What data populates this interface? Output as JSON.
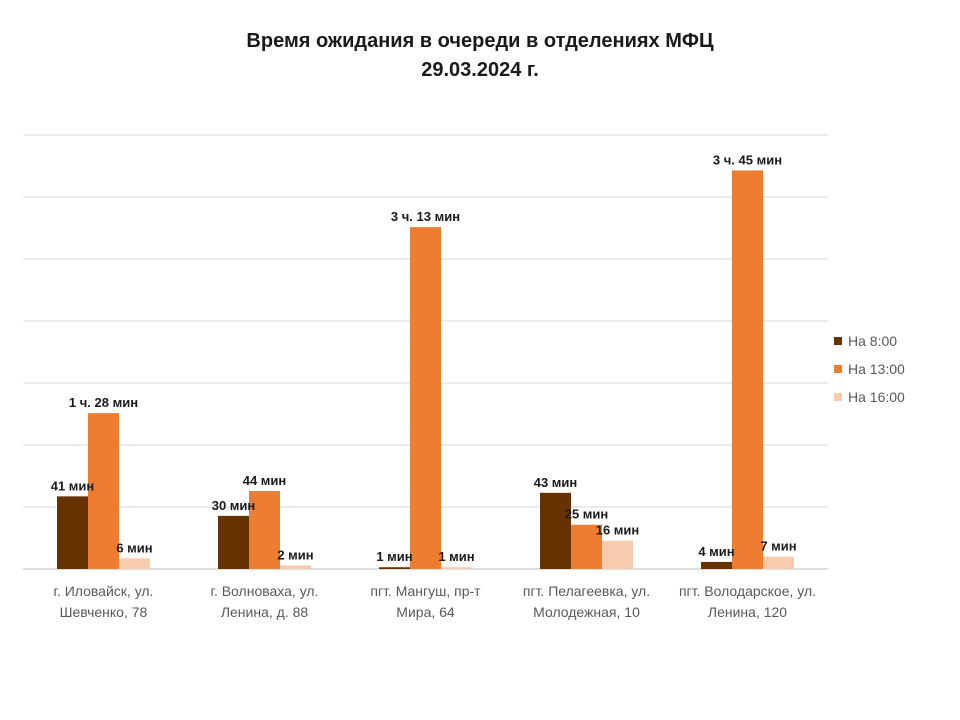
{
  "chart_data": {
    "type": "bar",
    "title": [
      "Время ожидания в очереди в отделениях МФЦ",
      "29.03.2024   г."
    ],
    "xlabel": "",
    "ylabel": "",
    "ylim": [
      0,
      245
    ],
    "grid": true,
    "legend_position": "right",
    "categories": [
      [
        "г. Иловайск, ул.",
        "Шевченко, 78"
      ],
      [
        "г. Волноваха, ул.",
        "Ленина, д. 88"
      ],
      [
        "пгт. Мангуш, пр-т",
        "Мира, 64"
      ],
      [
        "пгт. Пелагеевка, ул.",
        "Молодежная, 10"
      ],
      [
        "пгт. Володарское, ул.",
        "Ленина, 120"
      ]
    ],
    "series": [
      {
        "name": "На 8:00",
        "color": "#663300",
        "values": [
          41,
          30,
          1,
          43,
          4
        ],
        "labels": [
          "41 мин",
          "30 мин",
          "1 мин",
          "43 мин",
          "4 мин"
        ]
      },
      {
        "name": "На 13:00",
        "color": "#ED7D31",
        "values": [
          88,
          44,
          193,
          25,
          225
        ],
        "labels": [
          "1 ч. 28 мин",
          "44 мин",
          "3 ч. 13 мин",
          "25 мин",
          "3 ч. 45 мин"
        ]
      },
      {
        "name": "На 16:00",
        "color": "#F8CBAD",
        "values": [
          6,
          2,
          1,
          16,
          7
        ],
        "labels": [
          "6 мин",
          "2 мин",
          "1 мин",
          "16 мин",
          "7 мин"
        ]
      }
    ]
  }
}
